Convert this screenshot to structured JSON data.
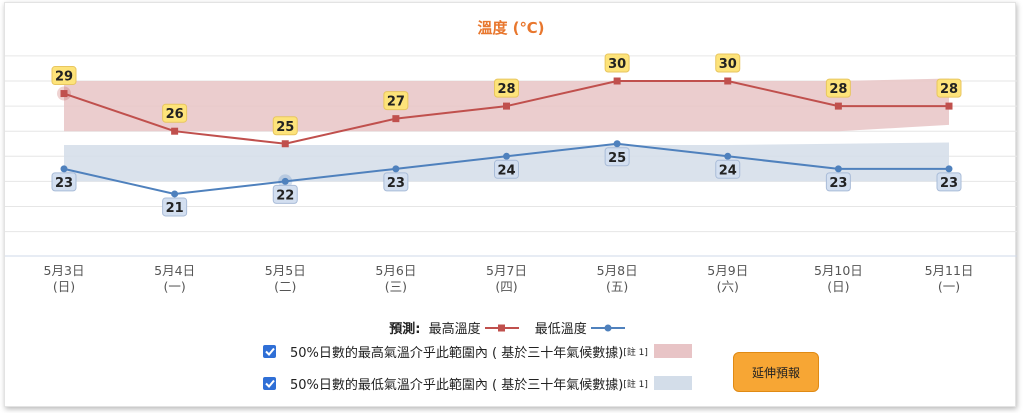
{
  "title": "溫度 (℃)",
  "chart_data": {
    "type": "line",
    "title": "溫度 (℃)",
    "categories": [
      "5月3日\n(日)",
      "5月4日\n(一)",
      "5月5日\n(二)",
      "5月6日\n(三)",
      "5月7日\n(四)",
      "5月8日\n(五)",
      "5月9日\n(六)",
      "5月10日\n(日)",
      "5月11日\n(一)"
    ],
    "series": [
      {
        "name": "最高溫度",
        "values": [
          29,
          26,
          25,
          27,
          28,
          30,
          30,
          28,
          28
        ],
        "color": "#c0504d"
      },
      {
        "name": "最低溫度",
        "values": [
          23,
          21,
          22,
          23,
          24,
          25,
          24,
          23,
          23
        ],
        "color": "#4f81bd"
      }
    ],
    "bands": [
      {
        "name": "max_range",
        "low": [
          26,
          26,
          26,
          26,
          26,
          26,
          26,
          26,
          26.5
        ],
        "high": [
          30,
          30,
          30,
          30,
          30,
          30,
          30,
          30,
          30.2
        ],
        "color": "#e8c4c6"
      },
      {
        "name": "min_range",
        "low": [
          22,
          22,
          22,
          22,
          22,
          22,
          22,
          22,
          22
        ],
        "high": [
          24.9,
          24.9,
          24.9,
          24.9,
          24.9,
          24.9,
          24.9,
          25,
          25.1
        ],
        "color": "#d3dde9"
      }
    ],
    "ylim": [
      17,
      33
    ],
    "grid": true,
    "legend_position": "bottom"
  },
  "legend": {
    "prefix": "預測:",
    "max_label": "最高溫度",
    "min_label": "最低溫度"
  },
  "bands_legend": {
    "max_text": "50%日數的最高氣溫介乎此範圍內 ( 基於三十年氣候數據)",
    "min_text": "50%日數的最低氣溫介乎此範圍內 ( 基於三十年氣候數據)",
    "note": "[註 1]",
    "max_checked": true,
    "min_checked": true
  },
  "extend_button": "延伸預報",
  "colors": {
    "title": "#e8772e",
    "max_line": "#c0504d",
    "min_line": "#4f81bd",
    "max_band": "#e8c4c6",
    "min_band": "#d3dde9",
    "max_label_bg": "#fde37a",
    "min_label_bg": "#d3dff0",
    "button": "#f7a634"
  }
}
